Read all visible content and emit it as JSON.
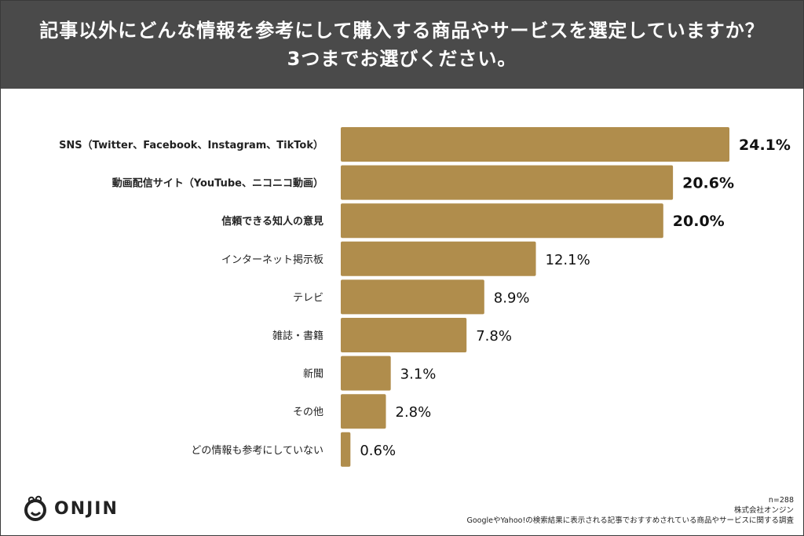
{
  "header": {
    "title_line1": "記事以外にどんな情報を参考にして購入する商品やサービスを選定していますか？",
    "title_line2": "3つまでお選びください。"
  },
  "chart_data": {
    "type": "bar",
    "orientation": "horizontal",
    "title": "記事以外にどんな情報を参考にして購入する商品やサービスを選定していますか？ 3つまでお選びください。",
    "categories": [
      "SNS（Twitter、Facebook、Instagram、TikTok）",
      "動画配信サイト（YouTube、ニコニコ動画）",
      "信頼できる知人の意見",
      "インターネット掲示板",
      "テレビ",
      "雑誌・書籍",
      "新聞",
      "その他",
      "どの情報も参考にしていない"
    ],
    "values": [
      24.1,
      20.6,
      20.0,
      12.1,
      8.9,
      7.8,
      3.1,
      2.8,
      0.6
    ],
    "value_labels": [
      "24.1%",
      "20.6%",
      "20.0%",
      "12.1%",
      "8.9%",
      "7.8%",
      "3.1%",
      "2.8%",
      "0.6%"
    ],
    "emphasized": [
      true,
      true,
      true,
      false,
      false,
      false,
      false,
      false,
      false
    ],
    "unit": "%",
    "xlim": [
      0,
      24.1
    ],
    "bar_color": "#b08d4c",
    "grid": false
  },
  "logo": {
    "text": "ONJIN"
  },
  "footer": {
    "sample": "n=288",
    "company": "株式会社オンジン",
    "survey": "GoogleやYahoo!の検索結果に表示される記事でおすすめされている商品やサービスに関する調査"
  }
}
